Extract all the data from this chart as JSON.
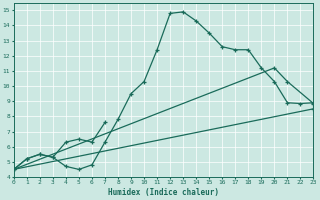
{
  "xlabel": "Humidex (Indice chaleur)",
  "xlim": [
    0,
    23
  ],
  "ylim": [
    4,
    15.5
  ],
  "xticks": [
    0,
    1,
    2,
    3,
    4,
    5,
    6,
    7,
    8,
    9,
    10,
    11,
    12,
    13,
    14,
    15,
    16,
    17,
    18,
    19,
    20,
    21,
    22,
    23
  ],
  "yticks": [
    4,
    5,
    6,
    7,
    8,
    9,
    10,
    11,
    12,
    13,
    14,
    15
  ],
  "bg_color": "#cce8e2",
  "line_color": "#1a6b5a",
  "grid_color": "#ffffff",
  "spine_color": "#1a6b5a",
  "curve0": {
    "x": [
      0,
      1,
      2,
      3,
      4,
      5,
      6,
      7,
      8,
      9,
      10,
      11,
      12,
      13,
      14,
      15,
      16,
      17,
      18,
      19,
      20,
      21,
      22,
      23
    ],
    "y": [
      4.5,
      5.2,
      5.5,
      5.3,
      4.7,
      4.5,
      4.8,
      6.3,
      7.8,
      9.5,
      10.3,
      12.4,
      14.8,
      14.9,
      14.3,
      13.5,
      12.6,
      12.4,
      12.4,
      11.2,
      10.3,
      8.9,
      8.85,
      8.9
    ]
  },
  "curve1": {
    "x": [
      0,
      1,
      2,
      3,
      4,
      5,
      6,
      7
    ],
    "y": [
      4.5,
      5.2,
      5.5,
      5.3,
      6.3,
      6.5,
      6.3,
      7.6
    ]
  },
  "curve2": {
    "x": [
      0,
      20,
      21,
      23
    ],
    "y": [
      4.5,
      11.2,
      10.3,
      8.85
    ]
  },
  "curve3": {
    "x": [
      0,
      23
    ],
    "y": [
      4.5,
      8.5
    ]
  }
}
